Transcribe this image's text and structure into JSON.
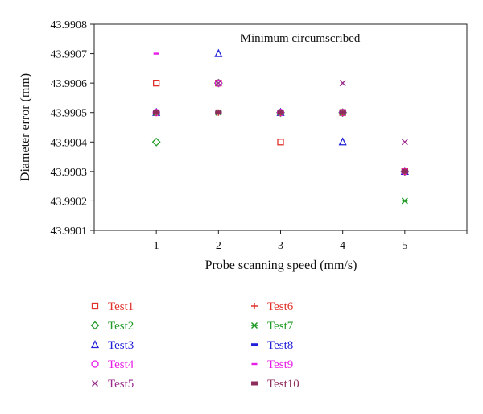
{
  "chart_data": {
    "type": "scatter",
    "title": "Minimum circumscribed",
    "xlabel": "Probe scanning speed (mm/s)",
    "ylabel": "Diameter error (mm)",
    "xlim": [
      0,
      6
    ],
    "ylim": [
      43.9901,
      43.9908
    ],
    "x_ticks": [
      "1",
      "2",
      "3",
      "4",
      "5"
    ],
    "y_ticks": [
      "43.9901",
      "43.9902",
      "43.9903",
      "43.9904",
      "43.9905",
      "43.9906",
      "43.9907",
      "43.9908"
    ],
    "grid": false,
    "legend_position": "bottom",
    "series": [
      {
        "name": "Test1",
        "color": "#e0302a",
        "marker": "square",
        "x": [
          1,
          2,
          3,
          4,
          5
        ],
        "y": [
          43.9906,
          43.9906,
          43.9904,
          43.9905,
          43.9903
        ]
      },
      {
        "name": "Test2",
        "color": "#1f9a25",
        "marker": "diamond",
        "x": [
          1,
          2,
          3,
          4,
          5
        ],
        "y": [
          43.9904,
          43.9906,
          43.9905,
          43.9905,
          43.9903
        ]
      },
      {
        "name": "Test3",
        "color": "#2020d8",
        "marker": "triangle",
        "x": [
          1,
          2,
          3,
          4,
          5
        ],
        "y": [
          43.9905,
          43.9907,
          43.9905,
          43.9904,
          43.9903
        ]
      },
      {
        "name": "Test4",
        "color": "#e61ee6",
        "marker": "circle",
        "x": [
          1,
          2,
          3,
          4,
          5
        ],
        "y": [
          43.9905,
          43.9906,
          43.9905,
          43.9905,
          43.9903
        ]
      },
      {
        "name": "Test5",
        "color": "#9a2a8a",
        "marker": "x",
        "x": [
          1,
          2,
          3,
          4,
          5
        ],
        "y": [
          43.9905,
          43.9906,
          43.9905,
          43.9906,
          43.9904
        ]
      },
      {
        "name": "Test6",
        "color": "#e0302a",
        "marker": "plus",
        "x": [
          1,
          2,
          3,
          4,
          5
        ],
        "y": [
          43.9905,
          43.9905,
          43.9905,
          43.9905,
          43.9903
        ]
      },
      {
        "name": "Test7",
        "color": "#1f9a25",
        "marker": "star",
        "x": [
          1,
          2,
          3,
          4,
          5
        ],
        "y": [
          43.9905,
          43.9905,
          43.9905,
          43.9905,
          43.9902
        ]
      },
      {
        "name": "Test8",
        "color": "#2020d8",
        "marker": "bar",
        "x": [
          1,
          2,
          3,
          4,
          5
        ],
        "y": [
          43.9905,
          43.9905,
          43.9905,
          43.9905,
          43.9903
        ]
      },
      {
        "name": "Test9",
        "color": "#e61ee6",
        "marker": "dash",
        "x": [
          1,
          2,
          3,
          4,
          5
        ],
        "y": [
          43.9907,
          43.9905,
          43.9905,
          43.9905,
          43.9903
        ]
      },
      {
        "name": "Test10",
        "color": "#8e2c5c",
        "marker": "thickbar",
        "x": [
          1,
          2,
          3,
          4,
          5
        ],
        "y": [
          43.9905,
          43.9905,
          43.9905,
          43.9905,
          43.9903
        ]
      }
    ]
  }
}
